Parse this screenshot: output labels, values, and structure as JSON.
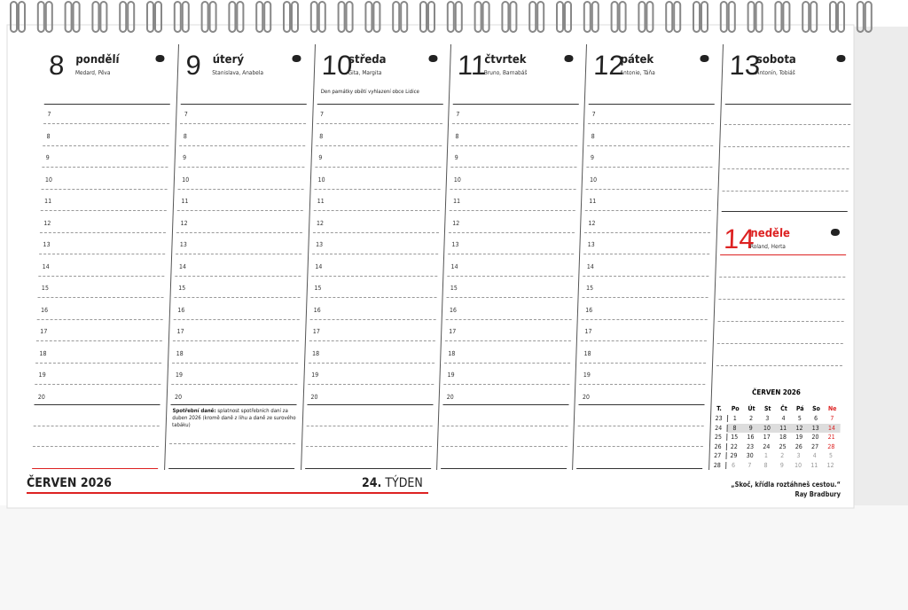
{
  "days": [
    {
      "number": "8",
      "name": "pondělí",
      "names": "Medard, Pěva"
    },
    {
      "number": "9",
      "name": "úterý",
      "names": "Stanislava, Anabela"
    },
    {
      "number": "10",
      "name": "středa",
      "names": "Gita, Margita"
    },
    {
      "number": "11",
      "name": "čtvrtek",
      "names": "Bruno, Barnabáš"
    },
    {
      "number": "12",
      "name": "pátek",
      "names": "Antonie, Táňa"
    },
    {
      "number": "13",
      "name": "sobota",
      "names": "Antonín, Tobiáš"
    }
  ],
  "sunday": {
    "number": "14",
    "name": "neděle",
    "names": "Roland, Herta"
  },
  "hours": [
    "7",
    "8",
    "9",
    "10",
    "11",
    "12",
    "13",
    "14",
    "15",
    "16",
    "17",
    "18",
    "19",
    "20"
  ],
  "notes": {
    "holiday": "Den památky obětí vyhlazení obce Lidice",
    "tax_label": "Spotřební daně:",
    "tax_text": " splatnost spotřebních daní za duben 2026 (kromě daně z lihu a daně ze surového tabáku)"
  },
  "footer": {
    "month": "ČERVEN 2026",
    "week_number": "24.",
    "week_word": "TÝDEN"
  },
  "mini_calendar": {
    "title": "ČERVEN 2026",
    "header": [
      "T.",
      "Po",
      "Út",
      "St",
      "Čt",
      "Pá",
      "So",
      "Ne"
    ],
    "rows": [
      [
        "23",
        "1",
        "2",
        "3",
        "4",
        "5",
        "6",
        "7"
      ],
      [
        "24",
        "8",
        "9",
        "10",
        "11",
        "12",
        "13",
        "14"
      ],
      [
        "25",
        "15",
        "16",
        "17",
        "18",
        "19",
        "20",
        "21"
      ],
      [
        "26",
        "22",
        "23",
        "24",
        "25",
        "26",
        "27",
        "28"
      ],
      [
        "27",
        "29",
        "30",
        "1",
        "2",
        "3",
        "4",
        "5"
      ],
      [
        "28",
        "6",
        "7",
        "8",
        "9",
        "10",
        "11",
        "12"
      ]
    ]
  },
  "quote": {
    "text": "„Skoč, křídla roztáhneš cestou.“",
    "author": "Ray Bradbury"
  }
}
